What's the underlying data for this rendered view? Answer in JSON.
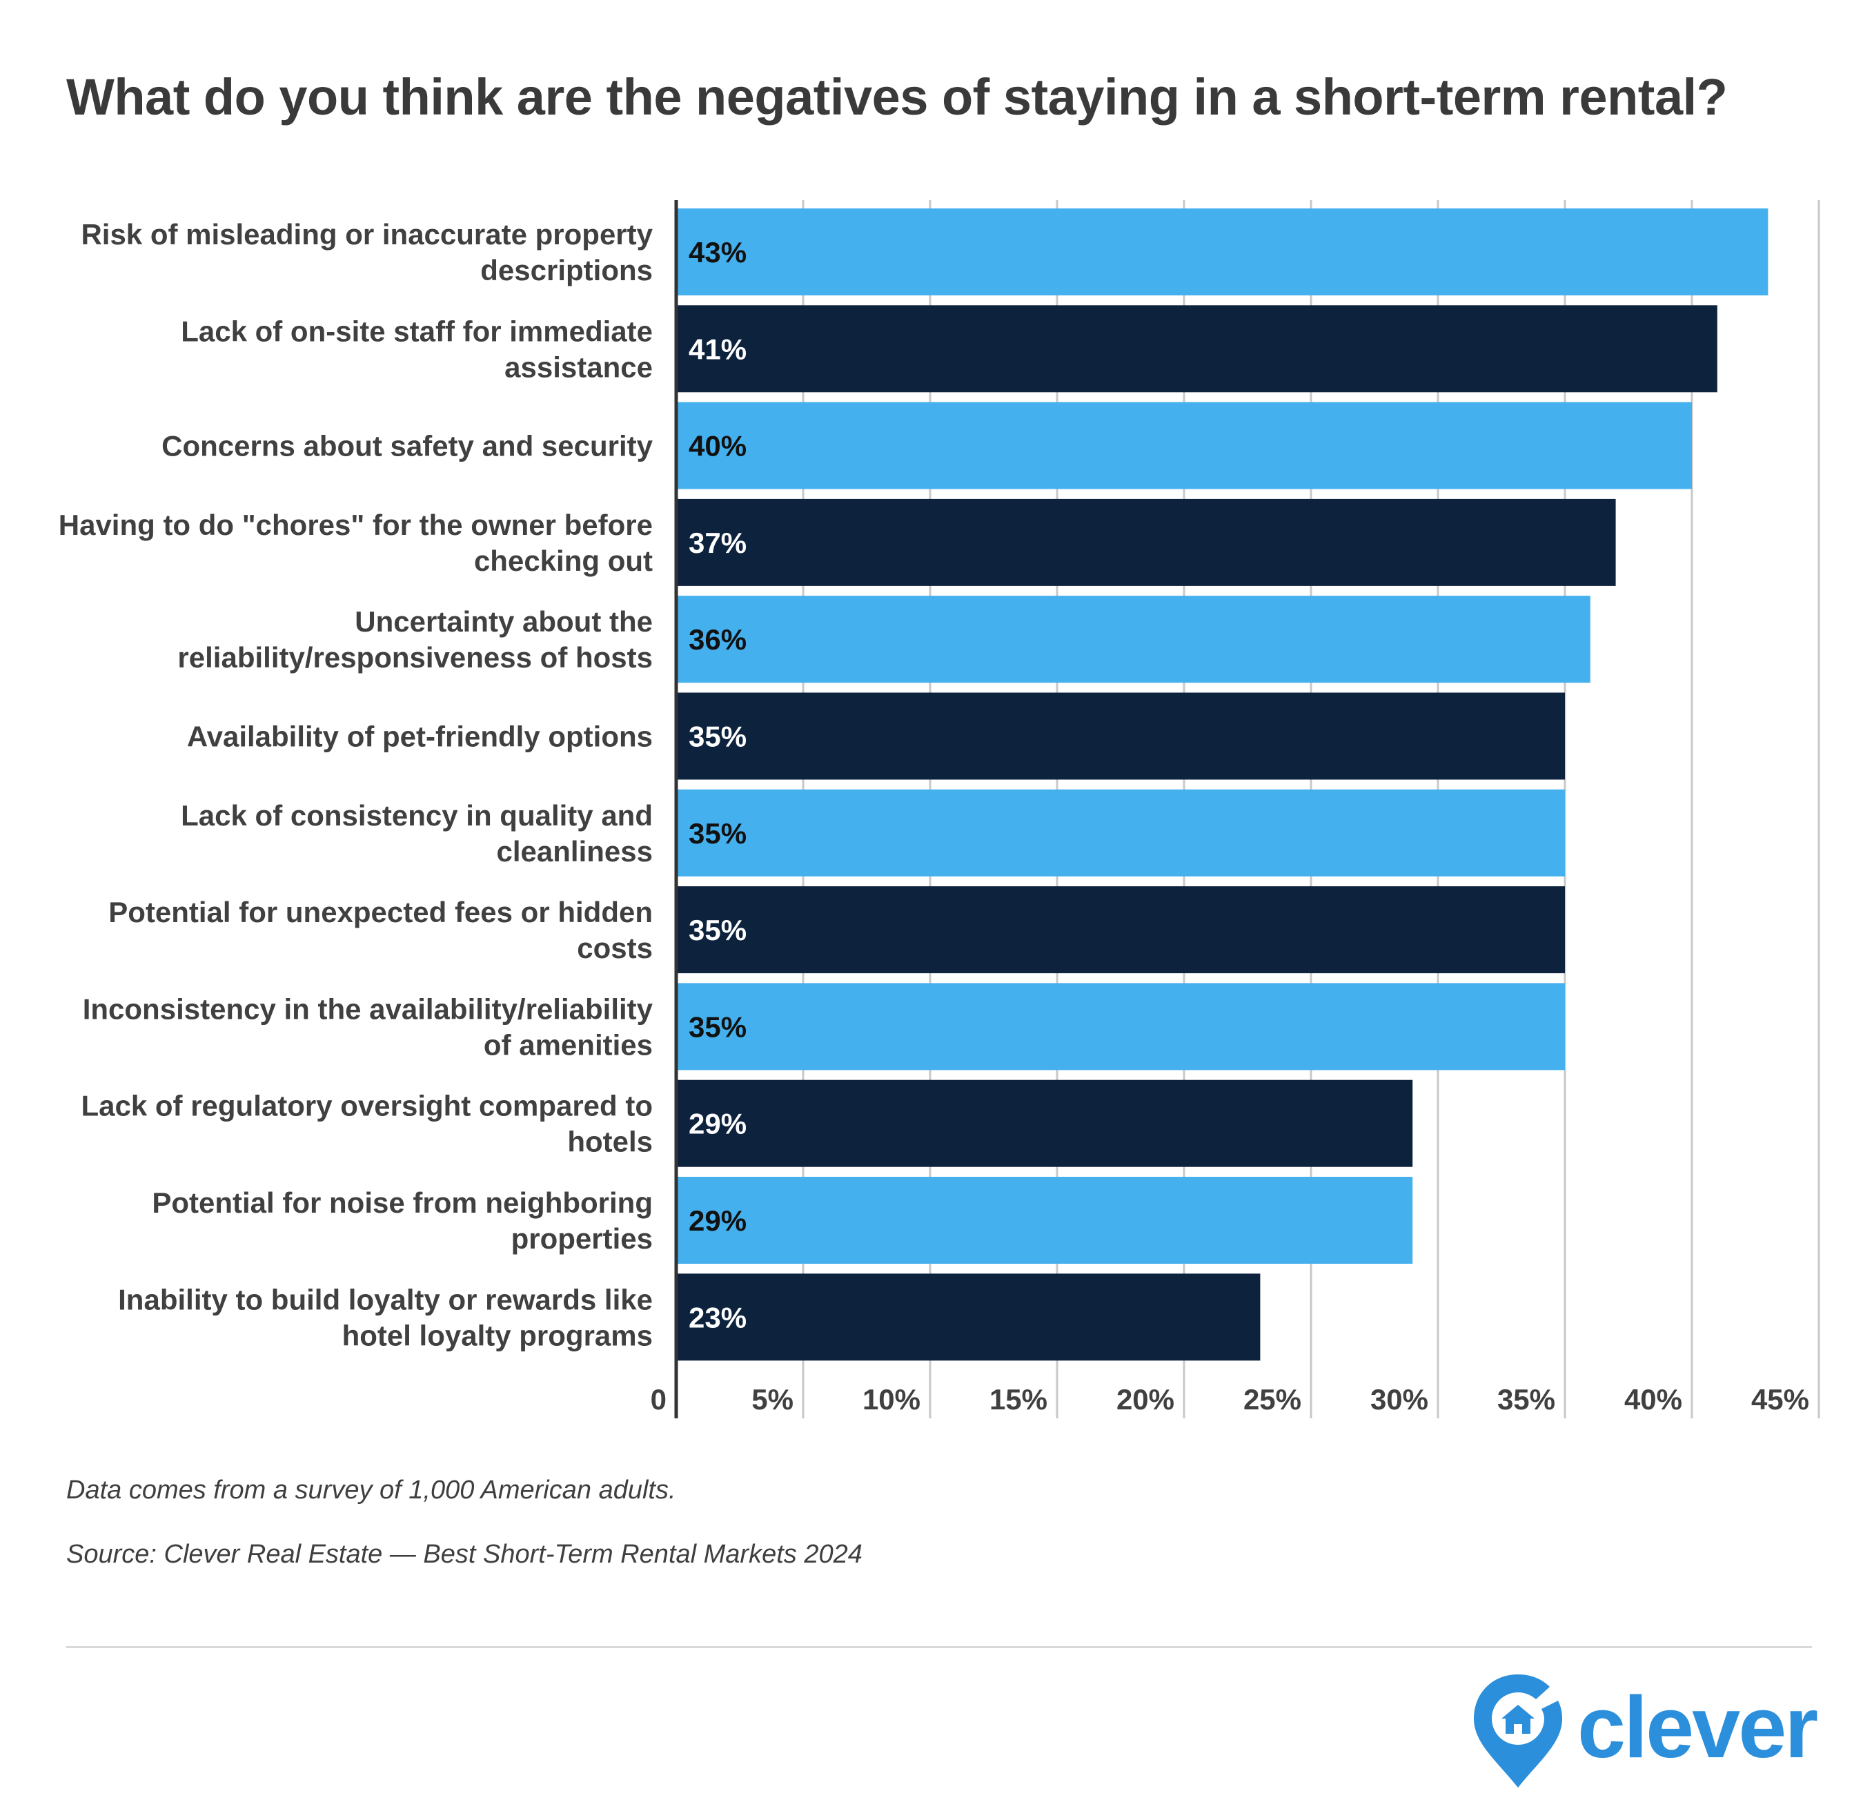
{
  "title": "What do you think are the negatives of staying in a short-term rental?",
  "chart_data": {
    "type": "bar",
    "orientation": "horizontal",
    "categories": [
      [
        "Risk of misleading or inaccurate property",
        "descriptions"
      ],
      [
        "Lack of on-site staff for immediate",
        "assistance"
      ],
      [
        "Concerns about safety and security"
      ],
      [
        "Having to do \"chores\" for the owner before",
        "checking out"
      ],
      [
        "Uncertainty about the",
        "reliability/responsiveness of hosts"
      ],
      [
        "Availability of pet-friendly options"
      ],
      [
        "Lack of consistency in quality and",
        "cleanliness"
      ],
      [
        "Potential for unexpected fees or hidden",
        "costs"
      ],
      [
        "Inconsistency in the availability/reliability",
        "of amenities"
      ],
      [
        "Lack of regulatory oversight compared to",
        "hotels"
      ],
      [
        "Potential for noise from neighboring",
        "properties"
      ],
      [
        "Inability to build loyalty or rewards like",
        "hotel loyalty programs"
      ]
    ],
    "values": [
      43,
      41,
      40,
      37,
      36,
      35,
      35,
      35,
      35,
      29,
      29,
      23
    ],
    "data_labels": [
      "43%",
      "41%",
      "40%",
      "37%",
      "36%",
      "35%",
      "35%",
      "35%",
      "35%",
      "29%",
      "29%",
      "23%"
    ],
    "xlim": [
      0,
      45
    ],
    "ticks": [
      0,
      5,
      10,
      15,
      20,
      25,
      30,
      35,
      40,
      45
    ],
    "tick_labels": [
      "0",
      "5%",
      "10%",
      "15%",
      "20%",
      "25%",
      "30%",
      "35%",
      "40%",
      "45%"
    ],
    "grid": true,
    "colors": [
      "#45b0ee",
      "#0c223d"
    ],
    "label_colors": [
      "#111111",
      "#ffffff"
    ]
  },
  "notes": {
    "survey": "Data comes from a survey of 1,000 American adults.",
    "source": "Source: Clever Real Estate — Best Short-Term Rental Markets 2024"
  },
  "logo": {
    "text": "clever",
    "color": "#2c8fdb"
  }
}
